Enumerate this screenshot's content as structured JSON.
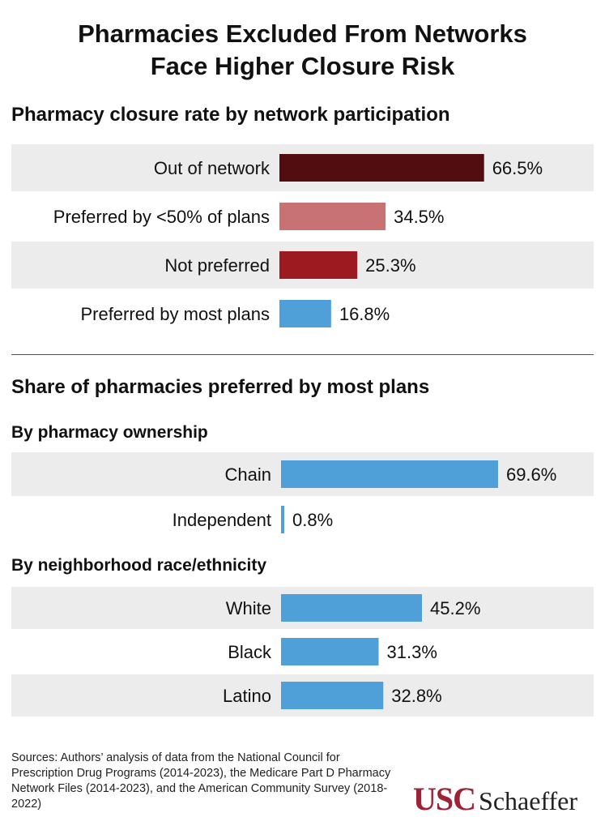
{
  "title_line1": "Pharmacies Excluded From Networks",
  "title_line2": "Face Higher Closure Risk",
  "section1_title": "Pharmacy closure rate by network participation",
  "section2_title": "Share of pharmacies preferred by most plans",
  "subhead_ownership": "By pharmacy ownership",
  "subhead_race": "By neighborhood race/ethnicity",
  "sources": "Sources: Authors’ analysis of data from the National Council for Prescription Drug Programs (2014-2023), the Medicare Part D Pharmacy Network Files (2014-2023), and the American Community Survey (2018-2022)",
  "logo": {
    "part1": "USC",
    "part2": "Schaeffer"
  },
  "colors": {
    "dark_red": "#520d10",
    "pink": "#c97274",
    "red": "#9d1b20",
    "blue": "#4fa0d8",
    "band": "#ececec",
    "logo_red": "#9d2235"
  },
  "chart_data": [
    {
      "type": "bar",
      "orientation": "horizontal",
      "title": "Pharmacy closure rate by network participation",
      "categories": [
        "Out of network",
        "Preferred by <50% of plans",
        "Not preferred",
        "Preferred by most plans"
      ],
      "values": [
        66.5,
        34.5,
        25.3,
        16.8
      ],
      "labels": [
        "66.5%",
        "34.5%",
        "25.3%",
        "16.8%"
      ],
      "colors": [
        "#520d10",
        "#c97274",
        "#9d1b20",
        "#4fa0d8"
      ],
      "xlim": [
        0,
        100
      ]
    },
    {
      "type": "bar",
      "orientation": "horizontal",
      "title": "By pharmacy ownership",
      "categories": [
        "Chain",
        "Independent"
      ],
      "values": [
        69.6,
        0.8
      ],
      "labels": [
        "69.6%",
        "0.8%"
      ],
      "colors": [
        "#4fa0d8",
        "#4fa0d8"
      ],
      "xlim": [
        0,
        100
      ]
    },
    {
      "type": "bar",
      "orientation": "horizontal",
      "title": "By neighborhood race/ethnicity",
      "categories": [
        "White",
        "Black",
        "Latino"
      ],
      "values": [
        45.2,
        31.3,
        32.8
      ],
      "labels": [
        "45.2%",
        "31.3%",
        "32.8%"
      ],
      "colors": [
        "#4fa0d8",
        "#4fa0d8",
        "#4fa0d8"
      ],
      "xlim": [
        0,
        100
      ]
    }
  ]
}
